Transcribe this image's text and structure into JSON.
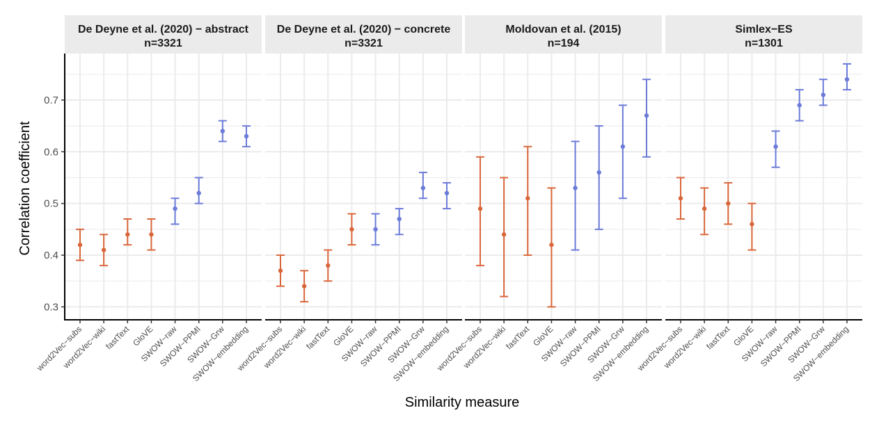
{
  "chart_data": {
    "type": "errorbar",
    "ylabel": "Correlation coefficient",
    "xlabel": "Similarity measure",
    "ylim": [
      0.275,
      0.79
    ],
    "yticks": [
      0.3,
      0.4,
      0.5,
      0.6,
      0.7
    ],
    "ytick_labels": [
      "0.3",
      "0.4",
      "0.5",
      "0.6",
      "0.7"
    ],
    "grid": true,
    "categories": [
      "word2Vec−subs",
      "word2Vec−wiki",
      "fastText",
      "GloVE",
      "SWOW−raw",
      "SWOW−PPMI",
      "SWOW−Grw",
      "SWOW−embedding"
    ],
    "colors": {
      "text_based": "#D9663A",
      "swow_based": "#6B7BD8",
      "strip_bg": "#EBEBEB",
      "grid": "#EBEBEB",
      "axis": "#000000"
    },
    "color_groups": [
      "text_based",
      "text_based",
      "text_based",
      "text_based",
      "swow_based",
      "swow_based",
      "swow_based",
      "swow_based"
    ],
    "panels": [
      {
        "title": "De Deyne et al. (2020) − abstract",
        "n": "n=3321",
        "values": [
          0.42,
          0.41,
          0.44,
          0.44,
          0.49,
          0.52,
          0.64,
          0.63
        ],
        "lower": [
          0.39,
          0.38,
          0.42,
          0.41,
          0.46,
          0.5,
          0.62,
          0.61
        ],
        "upper": [
          0.45,
          0.44,
          0.47,
          0.47,
          0.51,
          0.55,
          0.66,
          0.65
        ]
      },
      {
        "title": "De Deyne et al. (2020) − concrete",
        "n": "n=3321",
        "values": [
          0.37,
          0.34,
          0.38,
          0.45,
          0.45,
          0.47,
          0.53,
          0.52
        ],
        "lower": [
          0.34,
          0.31,
          0.35,
          0.42,
          0.42,
          0.44,
          0.51,
          0.49
        ],
        "upper": [
          0.4,
          0.37,
          0.41,
          0.48,
          0.48,
          0.49,
          0.56,
          0.54
        ]
      },
      {
        "title": "Moldovan et al. (2015)",
        "n": "n=194",
        "values": [
          0.49,
          0.44,
          0.51,
          0.42,
          0.53,
          0.56,
          0.61,
          0.67
        ],
        "lower": [
          0.38,
          0.32,
          0.4,
          0.3,
          0.41,
          0.45,
          0.51,
          0.59
        ],
        "upper": [
          0.59,
          0.55,
          0.61,
          0.53,
          0.62,
          0.65,
          0.69,
          0.74
        ]
      },
      {
        "title": "Simlex−ES",
        "n": "n=1301",
        "values": [
          0.51,
          0.49,
          0.5,
          0.46,
          0.61,
          0.69,
          0.71,
          0.74
        ],
        "lower": [
          0.47,
          0.44,
          0.46,
          0.41,
          0.57,
          0.66,
          0.69,
          0.72
        ],
        "upper": [
          0.55,
          0.53,
          0.54,
          0.5,
          0.64,
          0.72,
          0.74,
          0.77
        ]
      }
    ]
  }
}
